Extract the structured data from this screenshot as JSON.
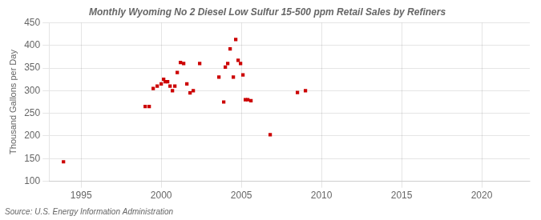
{
  "chart_data": {
    "type": "scatter",
    "title": "Monthly Wyoming No 2 Diesel Low Sulfur 15-500 ppm Retail Sales by Refiners",
    "ylabel": "Thousand Gallons per Day",
    "source": "Source: U.S. Energy Information Administration",
    "color": "#cc0000",
    "marker": "square",
    "grid": true,
    "xlim": [
      1993,
      2023
    ],
    "ylim": [
      100,
      450
    ],
    "xticks": [
      1995,
      2000,
      2005,
      2010,
      2015,
      2020
    ],
    "yticks": [
      100,
      150,
      200,
      250,
      300,
      350,
      400,
      450
    ],
    "x": [
      1993.9,
      1999.0,
      1999.25,
      1999.5,
      1999.75,
      2000.0,
      2000.15,
      2000.25,
      2000.4,
      2000.55,
      2000.7,
      2000.85,
      2001.0,
      2001.2,
      2001.4,
      2001.6,
      2001.8,
      2002.0,
      2002.4,
      2003.6,
      2003.9,
      2004.0,
      2004.15,
      2004.3,
      2004.5,
      2004.65,
      2004.8,
      2004.95,
      2005.1,
      2005.25,
      2005.4,
      2005.6,
      2006.8,
      2008.5,
      2009.0
    ],
    "values": [
      143,
      265,
      265,
      305,
      310,
      315,
      325,
      320,
      320,
      310,
      300,
      310,
      340,
      362,
      360,
      315,
      295,
      300,
      360,
      330,
      275,
      352,
      360,
      392,
      330,
      413,
      367,
      360,
      335,
      280,
      280,
      278,
      203,
      296,
      300
    ]
  }
}
